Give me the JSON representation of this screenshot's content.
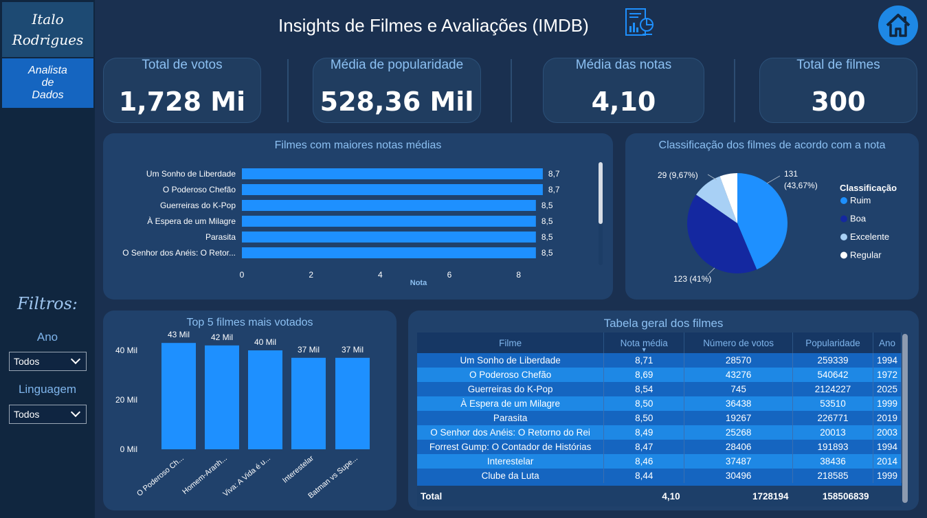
{
  "sidebar": {
    "name_line1": "Italo",
    "name_line2": "Rodrigues",
    "role_line1": "Analista",
    "role_line2": "de",
    "role_line3": "Dados",
    "filters_title": "Filtros:",
    "filter_year_label": "Ano",
    "filter_year_value": "Todos",
    "filter_language_label": "Linguagem",
    "filter_language_value": "Todos"
  },
  "header": {
    "title": "Insights de Filmes e Avaliações (IMDB)",
    "doc_icon": "report-document-icon",
    "home_icon": "home-icon"
  },
  "kpis": [
    {
      "label": "Total de votos",
      "value": "1,728 Mi"
    },
    {
      "label": "Média de popularidade",
      "value": "528,36 Mil"
    },
    {
      "label": "Média das notas",
      "value": "4,10"
    },
    {
      "label": "Total de filmes",
      "value": "300"
    }
  ],
  "colors": {
    "accent": "#1e90ff",
    "dark_blue": "#1428a0",
    "light_blue": "#a8d0f5",
    "white": "#ffffff",
    "panel": "#20416b"
  },
  "chart_data": [
    {
      "type": "bar",
      "orientation": "horizontal",
      "title": "Filmes com maiores notas médias",
      "xlabel": "Nota",
      "categories": [
        "Um Sonho de Liberdade",
        "O Poderoso Chefão",
        "Guerreiras do K-Pop",
        "À Espera de um Milagre",
        "Parasita",
        "O Senhor dos Anéis: O Retor..."
      ],
      "values": [
        8.7,
        8.7,
        8.5,
        8.5,
        8.5,
        8.5
      ],
      "data_labels": [
        "8,7",
        "8,7",
        "8,5",
        "8,5",
        "8,5",
        "8,5"
      ],
      "xticks": [
        "0",
        "2",
        "4",
        "6",
        "8"
      ],
      "xlim": [
        0,
        9
      ]
    },
    {
      "type": "pie",
      "title": "Classificação dos filmes de acordo com a nota",
      "legend_title": "Classificação",
      "legend_position": "right",
      "slices": [
        {
          "name": "Ruim",
          "value": 131,
          "label": "131",
          "label2": "(43,67%)",
          "color": "#1e90ff"
        },
        {
          "name": "Boa",
          "value": 123,
          "label": "123 (41%)",
          "color": "#1428a0"
        },
        {
          "name": "Excelente",
          "value": 29,
          "label": "29 (9,67%)",
          "color": "#a8d0f5"
        },
        {
          "name": "Regular",
          "value": 17,
          "label": "",
          "color": "#ffffff"
        }
      ]
    },
    {
      "type": "bar",
      "title": "Top 5 filmes mais votados",
      "categories": [
        "O Poderoso Ch...",
        "Homem-Aranh...",
        "Viva: A Vida é u...",
        "Interestelar",
        "Batman vs Supe..."
      ],
      "values": [
        43,
        42,
        40,
        37,
        37
      ],
      "data_labels": [
        "43 Mil",
        "42 Mil",
        "40 Mil",
        "37 Mil",
        "37 Mil"
      ],
      "yticks": [
        "0 Mil",
        "20 Mil",
        "40 Mil"
      ],
      "ylim": [
        0,
        45
      ]
    }
  ],
  "table": {
    "title": "Tabela geral dos filmes",
    "columns": [
      "Filme",
      "Nota média",
      "Número de votos",
      "Popularidade",
      "Ano"
    ],
    "rows": [
      [
        "Um Sonho de Liberdade",
        "8,71",
        "28570",
        "259339",
        "1994"
      ],
      [
        "O Poderoso Chefão",
        "8,69",
        "43276",
        "540642",
        "1972"
      ],
      [
        "Guerreiras do K-Pop",
        "8,54",
        "745",
        "2124227",
        "2025"
      ],
      [
        "À Espera de um Milagre",
        "8,50",
        "36438",
        "53510",
        "1999"
      ],
      [
        "Parasita",
        "8,50",
        "19267",
        "226771",
        "2019"
      ],
      [
        "O Senhor dos Anéis: O Retorno do Rei",
        "8,49",
        "25268",
        "20013",
        "2003"
      ],
      [
        "Forrest Gump: O Contador de Histórias",
        "8,47",
        "28406",
        "191893",
        "1994"
      ],
      [
        "Interestelar",
        "8,46",
        "37487",
        "38436",
        "2014"
      ],
      [
        "Clube da Luta",
        "8,44",
        "30496",
        "218585",
        "1999"
      ]
    ],
    "total": [
      "Total",
      "4,10",
      "1728194",
      "158506839",
      ""
    ]
  }
}
